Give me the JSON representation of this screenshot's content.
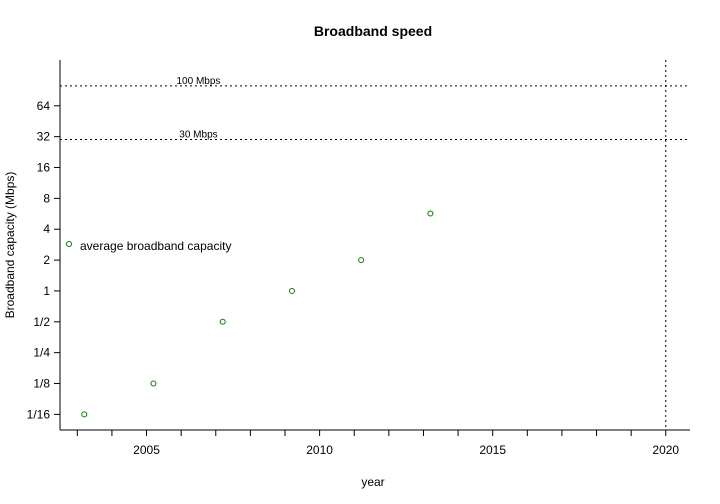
{
  "chart_data": {
    "type": "scatter",
    "title": "Broadband speed",
    "xlabel": "year",
    "ylabel": "Broadband capacity (Mbps)",
    "y_scale": "log2",
    "xlim": [
      2002.5,
      2020.7
    ],
    "ylim": [
      0.044,
      179
    ],
    "x_ticks": [
      2005,
      2010,
      2015,
      2020
    ],
    "x_minor_ticks": [
      2003,
      2004,
      2005,
      2006,
      2007,
      2008,
      2009,
      2010,
      2011,
      2012,
      2013,
      2014,
      2015,
      2016,
      2017,
      2018,
      2019,
      2020
    ],
    "y_ticks": [
      {
        "value": 0.0625,
        "label": "1/16"
      },
      {
        "value": 0.125,
        "label": "1/8"
      },
      {
        "value": 0.25,
        "label": "1/4"
      },
      {
        "value": 0.5,
        "label": "1/2"
      },
      {
        "value": 1,
        "label": "1"
      },
      {
        "value": 2,
        "label": "2"
      },
      {
        "value": 4,
        "label": "4"
      },
      {
        "value": 8,
        "label": "8"
      },
      {
        "value": 16,
        "label": "16"
      },
      {
        "value": 32,
        "label": "32"
      },
      {
        "value": 64,
        "label": "64"
      }
    ],
    "reference_lines": [
      {
        "axis": "y",
        "value": 100,
        "label": "100 Mbps"
      },
      {
        "axis": "y",
        "value": 30,
        "label": "30 Mbps"
      },
      {
        "axis": "x",
        "value": 2020,
        "label": ""
      }
    ],
    "series": [
      {
        "name": "average broadband capacity",
        "color": "#008000",
        "points": [
          {
            "x": 2003.2,
            "y": 0.0625
          },
          {
            "x": 2005.2,
            "y": 0.125
          },
          {
            "x": 2007.2,
            "y": 0.5
          },
          {
            "x": 2009.2,
            "y": 1
          },
          {
            "x": 2011.2,
            "y": 2
          },
          {
            "x": 2013.2,
            "y": 5.7
          }
        ]
      }
    ],
    "legend": "left",
    "grid": false
  }
}
